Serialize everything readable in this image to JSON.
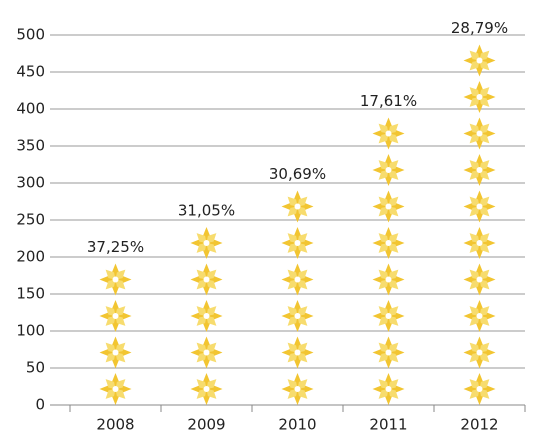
{
  "chart_data": {
    "type": "pictograph",
    "categories": [
      "2008",
      "2009",
      "2010",
      "2011",
      "2012"
    ],
    "values": [
      180,
      240,
      320,
      380,
      490
    ],
    "labels": [
      "37,25%",
      "31,05%",
      "30,69%",
      "17,61%",
      "28,79%"
    ],
    "color": "#f2c531",
    "ylim": [
      0,
      500
    ],
    "yticks": [
      0,
      50,
      100,
      150,
      200,
      250,
      300,
      350,
      400,
      450,
      500
    ],
    "grid": true
  }
}
